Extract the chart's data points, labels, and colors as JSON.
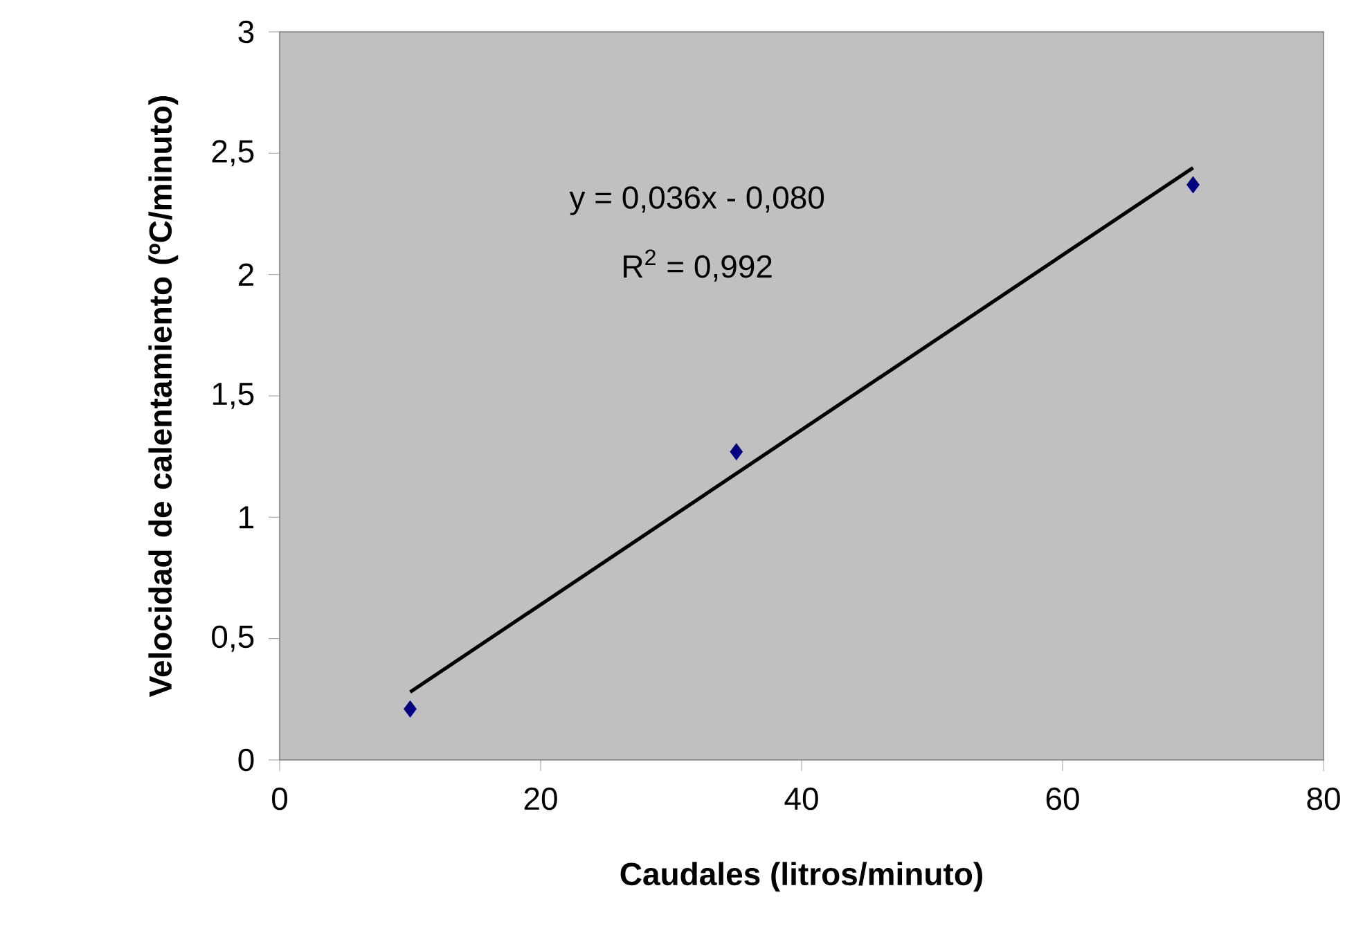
{
  "chart_data": {
    "type": "scatter",
    "xlabel": "Caudales (litros/minuto)",
    "ylabel": "Velocidad de calentamiento (ºC/minuto)",
    "series": [
      {
        "color": "#000080",
        "marker": "diamond",
        "x": [
          10,
          35,
          70
        ],
        "values": [
          0.21,
          1.27,
          2.37
        ]
      },
      {
        "type": "line",
        "color": "#000000",
        "marker": "none",
        "line_style": "solid",
        "x": [
          10,
          70
        ],
        "values": [
          0.28,
          2.44
        ]
      }
    ],
    "xlim": [
      0,
      80
    ],
    "xticks": [
      0,
      20,
      40,
      60,
      80
    ],
    "ylim": [
      0,
      3
    ],
    "yticks": [
      0,
      {
        "value": 0.5,
        "label": "0,5"
      },
      1,
      {
        "value": 1.5,
        "label": "1,5"
      },
      2,
      {
        "value": 2.5,
        "label": "2,5"
      },
      3
    ],
    "annotations": [
      "y = 0,036x - 0,080",
      "R$^{2}$ = 0,992"
    ],
    "grid": false
  }
}
